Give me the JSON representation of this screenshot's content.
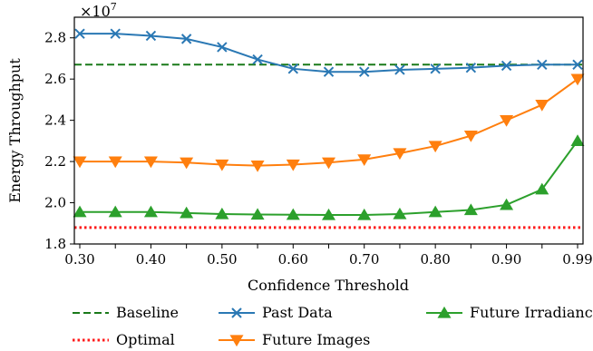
{
  "chart_data": {
    "type": "line",
    "xlabel": "Confidence Threshold",
    "ylabel": "Energy Throughput",
    "multiplier_label": "×10",
    "multiplier_exponent": "7",
    "x_ticks": [
      "0.30",
      "0.35",
      "0.40",
      "0.45",
      "0.50",
      "0.55",
      "0.60",
      "0.65",
      "0.70",
      "0.75",
      "0.80",
      "0.85",
      "0.90",
      "0.95",
      "0.99"
    ],
    "x_tick_labels": [
      "0.30",
      "0.40",
      "0.50",
      "0.60",
      "0.70",
      "0.80",
      "0.90",
      "0.99"
    ],
    "y_ticks": [
      "1.8",
      "2.0",
      "2.2",
      "2.4",
      "2.6",
      "2.8"
    ],
    "ylim": [
      1.8,
      2.9
    ],
    "grid": false,
    "legend_position": "bottom",
    "series": [
      {
        "name": "Baseline",
        "style": "dashed",
        "marker": "none",
        "color": "#1a7a1a",
        "values": [
          2.67,
          2.67,
          2.67,
          2.67,
          2.67,
          2.67,
          2.67,
          2.67,
          2.67,
          2.67,
          2.67,
          2.67,
          2.67,
          2.67,
          2.67
        ]
      },
      {
        "name": "Optimal",
        "style": "dotted",
        "marker": "none",
        "color": "#ff1a1a",
        "values": [
          1.88,
          1.88,
          1.88,
          1.88,
          1.88,
          1.88,
          1.88,
          1.88,
          1.88,
          1.88,
          1.88,
          1.88,
          1.88,
          1.88,
          1.88
        ]
      },
      {
        "name": "Past Data",
        "style": "solid",
        "marker": "x",
        "color": "#2a78b4",
        "values": [
          2.82,
          2.82,
          2.81,
          2.795,
          2.755,
          2.695,
          2.65,
          2.635,
          2.635,
          2.645,
          2.65,
          2.655,
          2.665,
          2.67,
          2.67
        ]
      },
      {
        "name": "Future Images",
        "style": "solid",
        "marker": "triangle-down",
        "color": "#ff7f0e",
        "values": [
          2.2,
          2.2,
          2.2,
          2.195,
          2.185,
          2.18,
          2.185,
          2.195,
          2.21,
          2.24,
          2.275,
          2.325,
          2.4,
          2.475,
          2.6
        ]
      },
      {
        "name": "Future Irradiance",
        "style": "solid",
        "marker": "triangle-up",
        "color": "#2ca02c",
        "values": [
          1.955,
          1.955,
          1.955,
          1.95,
          1.945,
          1.943,
          1.942,
          1.941,
          1.941,
          1.945,
          1.955,
          1.965,
          1.99,
          2.065,
          2.3
        ]
      }
    ]
  }
}
